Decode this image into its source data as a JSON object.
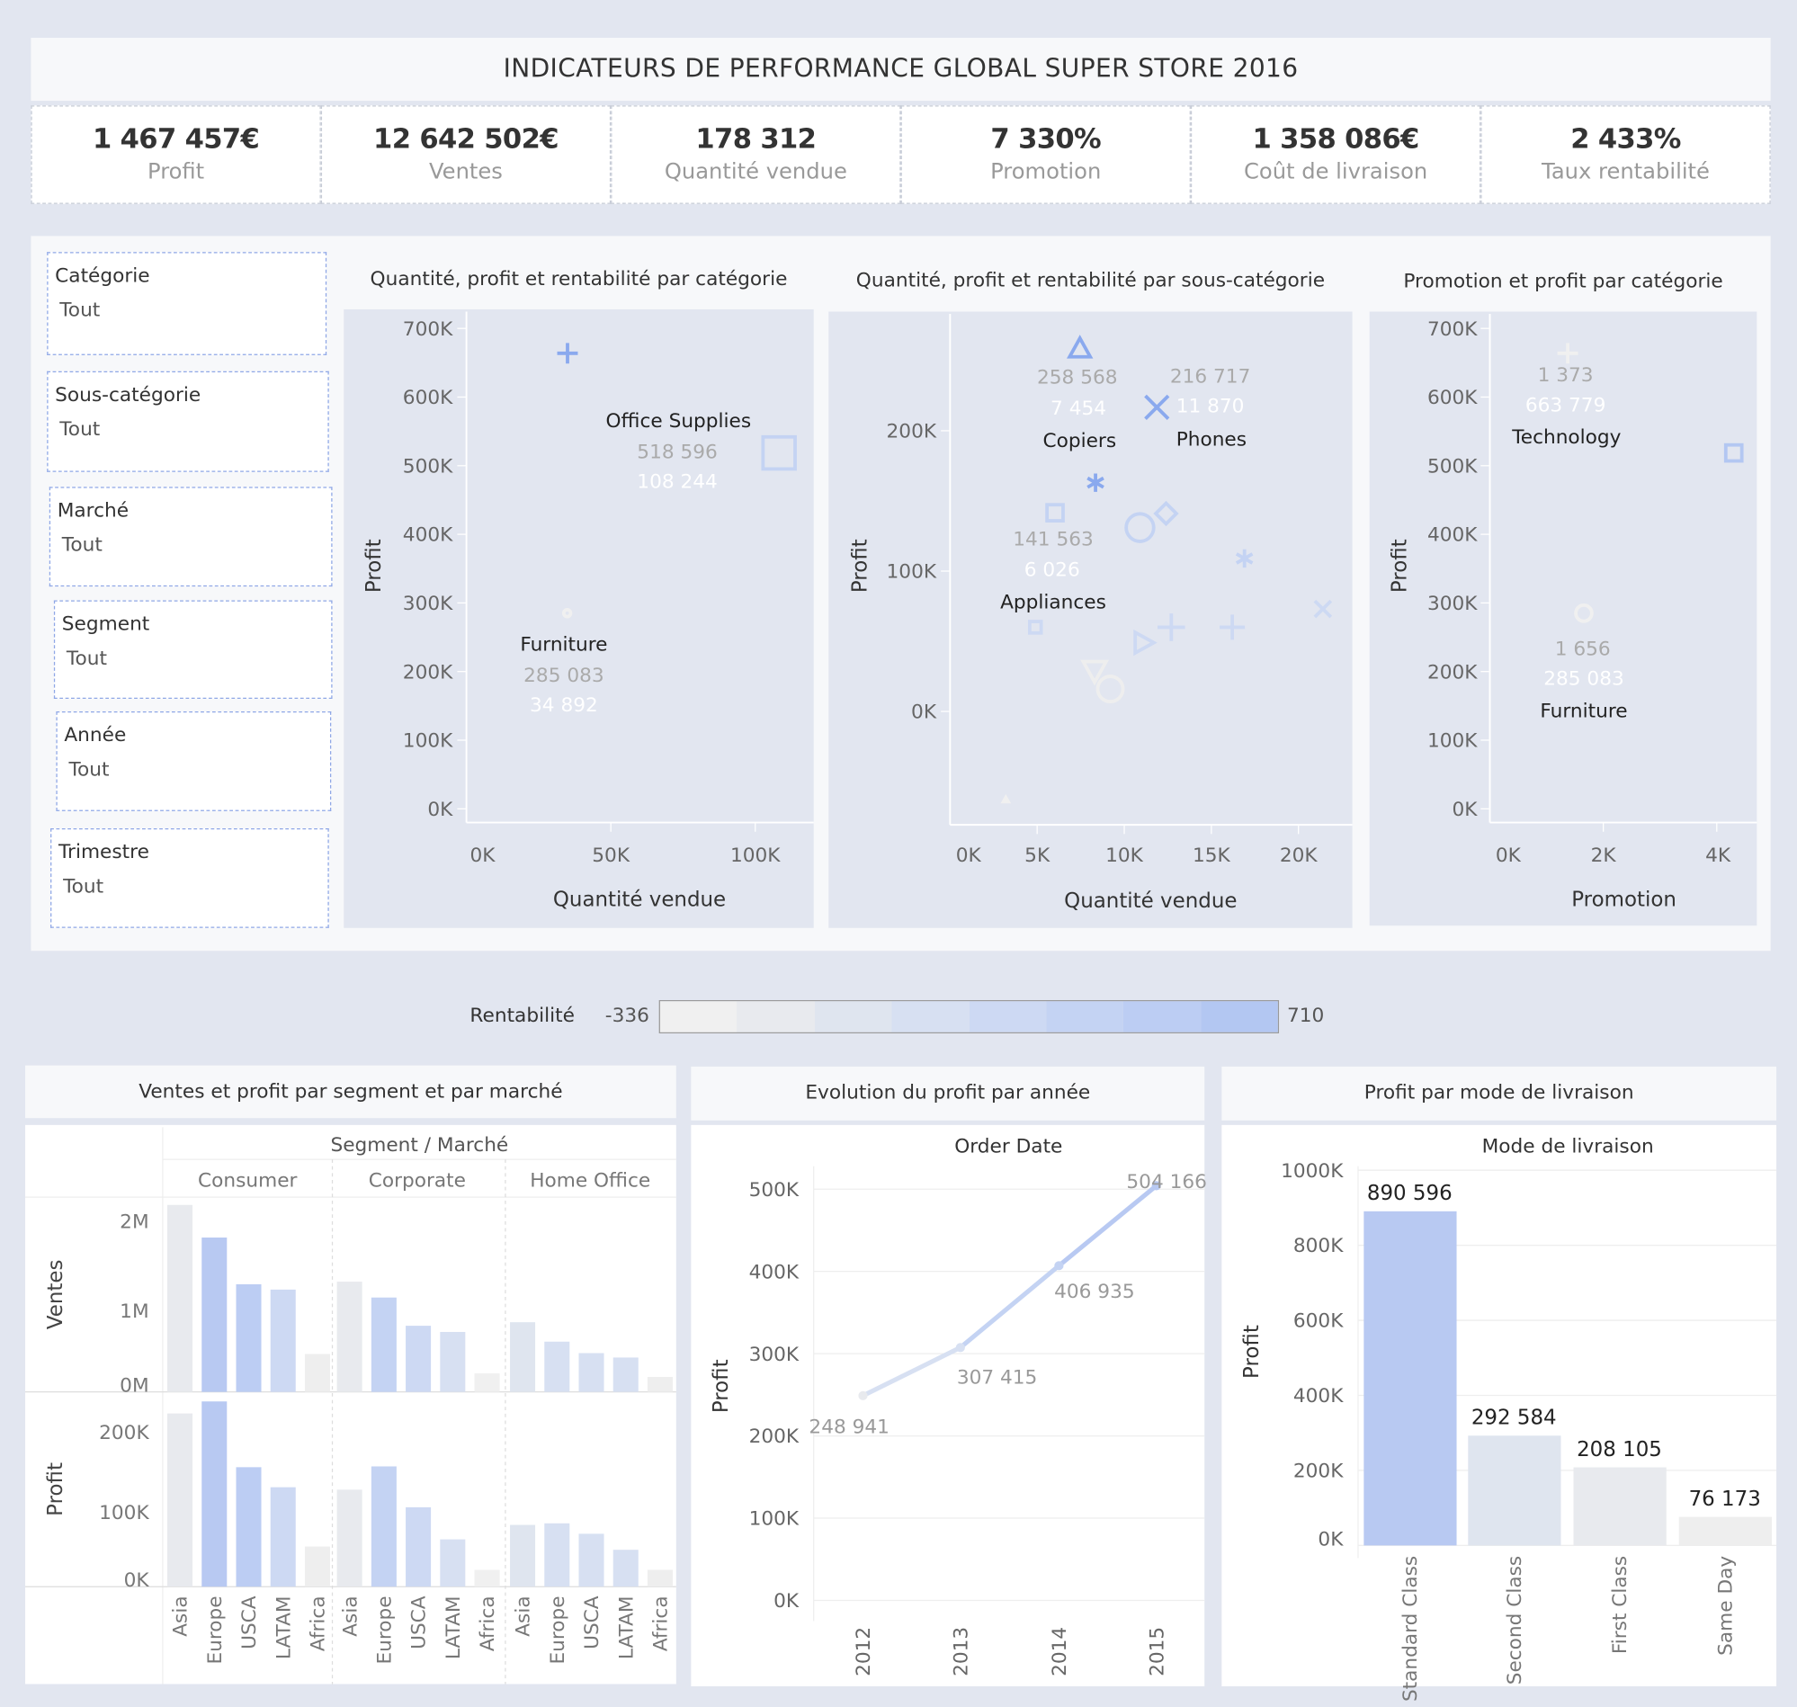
{
  "header": {
    "title": "INDICATEURS DE PERFORMANCE GLOBAL SUPER STORE 2016"
  },
  "kpis": [
    {
      "value": "1 467 457€",
      "label": "Profit"
    },
    {
      "value": "12 642 502€",
      "label": "Ventes"
    },
    {
      "value": "178 312",
      "label": "Quantité vendue"
    },
    {
      "value": "7 330%",
      "label": "Promotion"
    },
    {
      "value": "1 358 086€",
      "label": "Coût de livraison"
    },
    {
      "value": "2 433%",
      "label": "Taux rentabilité"
    }
  ],
  "filters": [
    {
      "name": "Catégorie",
      "value": "Tout"
    },
    {
      "name": "Sous-catégorie",
      "value": "Tout"
    },
    {
      "name": "Marché",
      "value": "Tout"
    },
    {
      "name": "Segment",
      "value": "Tout"
    },
    {
      "name": "Année",
      "value": "Tout"
    },
    {
      "name": "Trimestre",
      "value": "Tout"
    }
  ],
  "legend": {
    "title": "Rentabilité",
    "min": "-336",
    "max": "710",
    "colors": [
      "#f0f0f0",
      "#e8eaee",
      "#dfe5ef",
      "#d7e0f2",
      "#cdd9f3",
      "#c4d3f3",
      "#bccdf3",
      "#b3c7f2"
    ]
  },
  "chart_data": [
    {
      "type": "scatter",
      "title": "Quantité, profit et rentabilité par catégorie",
      "xlabel": "Quantité vendue",
      "ylabel": "Profit",
      "xticks": [
        "0K",
        "50K",
        "100K"
      ],
      "yticks": [
        "0K",
        "100K",
        "200K",
        "300K",
        "400K",
        "500K",
        "600K",
        "700K"
      ],
      "points": [
        {
          "label": "Technology",
          "shape": "plus",
          "x": 35000,
          "y": 663779,
          "color": "#8aa9ee"
        },
        {
          "label": "Office Supplies",
          "shape": "square",
          "x": 108244,
          "y": 518596,
          "color": "#c4d3f3",
          "values": [
            "518 596",
            "108 244"
          ]
        },
        {
          "label": "Furniture",
          "shape": "circle",
          "x": 34892,
          "y": 285083,
          "color": "#f0f0f0",
          "values": [
            "285 083",
            "34 892"
          ]
        }
      ]
    },
    {
      "type": "scatter",
      "title": "Quantité, profit et rentabilité par sous-catégorie",
      "xlabel": "Quantité vendue",
      "ylabel": "Profit",
      "xticks": [
        "0K",
        "5K",
        "10K",
        "15K",
        "20K"
      ],
      "yticks": [
        "0K",
        "100K",
        "200K"
      ],
      "points": [
        {
          "label": "Copiers",
          "shape": "triangle",
          "x": 7454,
          "y": 258568,
          "color": "#8aa9ee",
          "values": [
            "258 568",
            "7 454"
          ]
        },
        {
          "label": "Phones",
          "shape": "x",
          "x": 11870,
          "y": 216717,
          "color": "#8aa9ee",
          "values": [
            "216 717",
            "11 870"
          ]
        },
        {
          "shape": "asterisk",
          "x": 8350,
          "y": 163000,
          "color": "#8aa9ee"
        },
        {
          "label": "Appliances",
          "shape": "square",
          "x": 6026,
          "y": 141563,
          "color": "#c4d3f3",
          "values": [
            "141 563",
            "6 026"
          ]
        },
        {
          "shape": "circle",
          "x": 10900,
          "y": 131000,
          "color": "#c4d3f3"
        },
        {
          "shape": "diamond",
          "x": 12400,
          "y": 141000,
          "color": "#c4d3f3"
        },
        {
          "shape": "asterisk",
          "x": 16900,
          "y": 109000,
          "color": "#c4d3f3"
        },
        {
          "shape": "x",
          "x": 21400,
          "y": 73000,
          "color": "#cdd9f3"
        },
        {
          "shape": "square",
          "x": 4900,
          "y": 60000,
          "color": "#cdd9f3"
        },
        {
          "shape": "triangle-right",
          "x": 11100,
          "y": 49000,
          "color": "#cdd9f3"
        },
        {
          "shape": "plus",
          "x": 12700,
          "y": 60000,
          "color": "#cdd9f3"
        },
        {
          "shape": "plus",
          "x": 16200,
          "y": 60000,
          "color": "#cdd9f3"
        },
        {
          "shape": "triangle-down",
          "x": 8300,
          "y": 29000,
          "color": "#eeeeee"
        },
        {
          "shape": "circle",
          "x": 9200,
          "y": 16000,
          "color": "#eeeeee"
        },
        {
          "shape": "triangle",
          "x": 3200,
          "y": -63000,
          "color": "#f0f0f0"
        }
      ]
    },
    {
      "type": "scatter",
      "title": "Promotion et profit par catégorie",
      "xlabel": "Promotion",
      "ylabel": "Profit",
      "xticks": [
        "0K",
        "2K",
        "4K"
      ],
      "yticks": [
        "0K",
        "100K",
        "200K",
        "300K",
        "400K",
        "500K",
        "600K",
        "700K"
      ],
      "points": [
        {
          "label": "Technology",
          "shape": "plus",
          "x": 1373,
          "y": 663779,
          "color": "#f0f0f0",
          "values": [
            "1 373",
            "663 779"
          ]
        },
        {
          "label": "Furniture",
          "shape": "circle",
          "x": 1656,
          "y": 285083,
          "color": "#f0f0f0",
          "values": [
            "1 656",
            "285 083"
          ]
        },
        {
          "shape": "square",
          "x": 4300,
          "y": 518596,
          "color": "#b3c7f2"
        }
      ]
    },
    {
      "type": "bar",
      "title": "Ventes et profit par segment et par marché",
      "header": "Segment  /  Marché",
      "segments": [
        "Consumer",
        "Corporate",
        "Home Office"
      ],
      "markets": [
        "Asia",
        "Europe",
        "USCA",
        "LATAM",
        "Africa"
      ],
      "ventes": {
        "label": "Ventes",
        "ticks": [
          "0M",
          "1M",
          "2M"
        ],
        "values": [
          [
            2120000,
            1750000,
            1220000,
            1160000,
            430000
          ],
          [
            1250000,
            1070000,
            750000,
            680000,
            210000
          ],
          [
            790000,
            570000,
            440000,
            390000,
            170000
          ]
        ]
      },
      "profit": {
        "label": "Profit",
        "ticks": [
          "0K",
          "100K",
          "200K"
        ],
        "values": [
          [
            216000,
            231000,
            149000,
            124000,
            50000
          ],
          [
            121000,
            150000,
            99000,
            59000,
            21000
          ],
          [
            77000,
            79000,
            66000,
            46000,
            21000
          ]
        ]
      },
      "colors": [
        [
          "#e8eaee",
          "#b8c9f2",
          "#bccdf3",
          "#cdd9f3",
          "#eeeeee"
        ],
        [
          "#e8eaee",
          "#c4d3f3",
          "#cdd9f3",
          "#d7e0f2",
          "#f0f0f0"
        ],
        [
          "#dfe5ef",
          "#d7e0f2",
          "#d7e0f2",
          "#d7e0f2",
          "#eeeeee"
        ]
      ]
    },
    {
      "type": "line",
      "title": "Evolution du profit par année",
      "header": "Order Date",
      "ylabel": "Profit",
      "x": [
        "2012",
        "2013",
        "2014",
        "2015"
      ],
      "y": [
        248941,
        307415,
        406935,
        504166
      ],
      "labels": [
        "248 941",
        "307 415",
        "406 935",
        "504 166"
      ],
      "yticks": [
        "0K",
        "100K",
        "200K",
        "300K",
        "400K",
        "500K"
      ]
    },
    {
      "type": "bar",
      "title": "Profit par mode de livraison",
      "header": "Mode de livraison",
      "ylabel": "Profit",
      "categories": [
        "Standard Class",
        "Second Class",
        "First Class",
        "Same Day"
      ],
      "values": [
        890596,
        292584,
        208105,
        76173
      ],
      "labels": [
        "890 596",
        "292 584",
        "208 105",
        "76 173"
      ],
      "colors": [
        "#b8c9f2",
        "#dfe5ef",
        "#e8eaee",
        "#eeeeee"
      ],
      "yticks": [
        "0K",
        "200K",
        "400K",
        "600K",
        "800K",
        "1000K"
      ]
    }
  ]
}
